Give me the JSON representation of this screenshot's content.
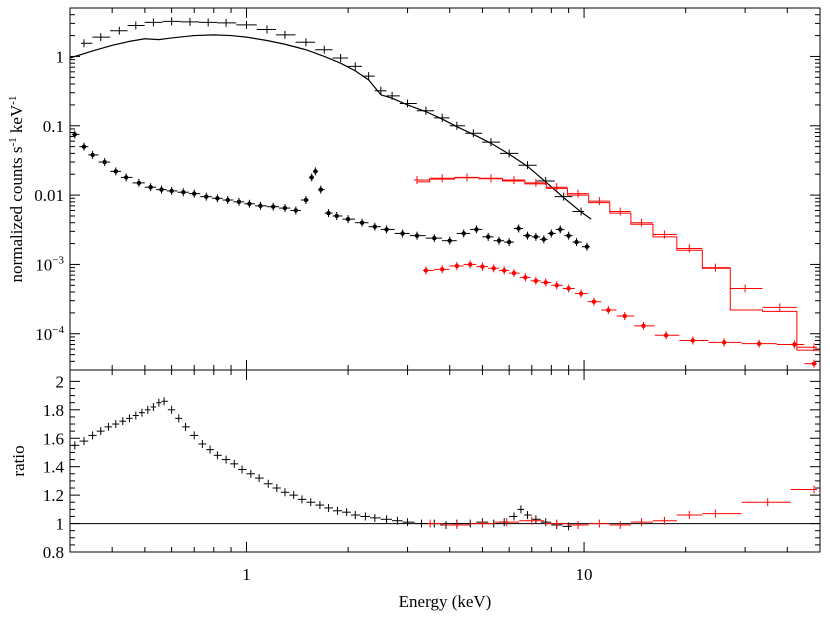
{
  "chart_data": [
    {
      "panel": "top",
      "type": "scatter",
      "xscale": "log",
      "yscale": "log",
      "xlim": [
        0.3,
        50
      ],
      "ylim": [
        3e-05,
        5
      ],
      "ylabel": {
        "base": "normalized counts s",
        "exp1": "-1",
        "mid": " keV",
        "exp2": "-1"
      },
      "x_ticks": [],
      "y_ticks": [
        {
          "v": 1,
          "label": "1"
        },
        {
          "v": 0.1,
          "label": "0.1"
        },
        {
          "v": 0.01,
          "label": "0.01"
        },
        {
          "v": 0.001,
          "label": "10",
          "exp": "−3"
        },
        {
          "v": 0.0001,
          "label": "10",
          "exp": "−4"
        }
      ],
      "series": [
        {
          "kind": "xmm-data",
          "color": "#000000",
          "marker": "cross",
          "x": [
            0.33,
            0.37,
            0.42,
            0.47,
            0.53,
            0.6,
            0.68,
            0.77,
            0.87,
            1.0,
            1.15,
            1.3,
            1.5,
            1.7,
            1.9,
            2.1,
            2.3,
            2.5,
            2.7,
            3.0,
            3.4,
            3.8,
            4.2,
            4.7,
            5.3,
            6.0,
            6.8,
            7.7,
            8.7,
            9.8
          ],
          "y": [
            1.55,
            1.9,
            2.35,
            2.8,
            3.1,
            3.2,
            3.15,
            3.1,
            3.05,
            2.85,
            2.45,
            2.05,
            1.6,
            1.25,
            0.95,
            0.72,
            0.52,
            0.32,
            0.27,
            0.21,
            0.165,
            0.13,
            0.1,
            0.078,
            0.058,
            0.04,
            0.027,
            0.016,
            0.0095,
            0.0058
          ]
        },
        {
          "kind": "xmm-model",
          "color": "#000000",
          "marker": "line",
          "x": [
            0.3,
            0.35,
            0.4,
            0.45,
            0.5,
            0.55,
            0.6,
            0.7,
            0.8,
            0.9,
            1.0,
            1.15,
            1.3,
            1.5,
            1.7,
            1.9,
            2.1,
            2.3,
            2.5,
            2.7,
            3.0,
            3.4,
            3.8,
            4.2,
            4.7,
            5.3,
            6.0,
            6.8,
            7.7,
            8.7,
            9.8,
            10.5
          ],
          "y": [
            0.95,
            1.2,
            1.45,
            1.65,
            1.8,
            1.75,
            1.85,
            2.0,
            2.05,
            2.0,
            1.9,
            1.7,
            1.5,
            1.25,
            1.0,
            0.8,
            0.62,
            0.46,
            0.28,
            0.25,
            0.2,
            0.16,
            0.125,
            0.097,
            0.075,
            0.056,
            0.039,
            0.026,
            0.0155,
            0.0092,
            0.0057,
            0.0045
          ]
        },
        {
          "kind": "xmm-background",
          "color": "#000000",
          "marker": "star",
          "x": [
            0.31,
            0.33,
            0.35,
            0.38,
            0.41,
            0.44,
            0.48,
            0.52,
            0.56,
            0.6,
            0.65,
            0.7,
            0.76,
            0.82,
            0.88,
            0.95,
            1.02,
            1.1,
            1.2,
            1.3,
            1.4,
            1.5,
            1.56,
            1.6,
            1.66,
            1.75,
            1.85,
            2.0,
            2.2,
            2.4,
            2.6,
            2.9,
            3.2,
            3.6,
            4.0,
            4.4,
            4.8,
            5.2,
            5.6,
            6.0,
            6.4,
            6.8,
            7.2,
            7.6,
            8.0,
            8.5,
            9.0,
            9.5,
            10.2
          ],
          "y": [
            0.075,
            0.05,
            0.038,
            0.03,
            0.022,
            0.018,
            0.015,
            0.013,
            0.012,
            0.0115,
            0.011,
            0.0105,
            0.0095,
            0.009,
            0.0085,
            0.008,
            0.0075,
            0.007,
            0.0068,
            0.0065,
            0.006,
            0.0085,
            0.018,
            0.022,
            0.012,
            0.0055,
            0.005,
            0.0045,
            0.004,
            0.0035,
            0.0032,
            0.0028,
            0.0026,
            0.0024,
            0.0022,
            0.0028,
            0.0032,
            0.0025,
            0.0022,
            0.0021,
            0.0033,
            0.0026,
            0.0025,
            0.0023,
            0.0028,
            0.0032,
            0.0026,
            0.0021,
            0.0018
          ]
        },
        {
          "kind": "nustar-data",
          "color": "#ff0000",
          "marker": "cross",
          "x": [
            3.2,
            3.8,
            4.5,
            5.3,
            6.2,
            7.2,
            8.3,
            9.6,
            11.1,
            12.8,
            14.8,
            17.3,
            20.5,
            24.5,
            30.0,
            38.0,
            48.0
          ],
          "y": [
            0.0165,
            0.0175,
            0.018,
            0.0175,
            0.0165,
            0.015,
            0.013,
            0.0105,
            0.0082,
            0.0058,
            0.004,
            0.0027,
            0.0017,
            0.0009,
            0.00045,
            0.00024,
            6.4e-05
          ]
        },
        {
          "kind": "nustar-model",
          "color": "#ff0000",
          "marker": "step",
          "x": [
            3.2,
            3.8,
            4.5,
            5.3,
            6.2,
            7.2,
            8.3,
            9.6,
            11.1,
            12.8,
            14.8,
            17.3,
            20.5,
            24.5,
            30.0,
            38.0,
            48.0
          ],
          "y": [
            0.0155,
            0.017,
            0.0178,
            0.0172,
            0.016,
            0.0145,
            0.0125,
            0.01,
            0.0078,
            0.0055,
            0.0038,
            0.0025,
            0.0016,
            0.00088,
            0.00022,
            0.00021,
            5.8e-05
          ]
        },
        {
          "kind": "nustar-background",
          "color": "#ff0000",
          "marker": "star",
          "x": [
            3.4,
            3.8,
            4.2,
            4.6,
            5.0,
            5.4,
            5.8,
            6.2,
            6.7,
            7.2,
            7.7,
            8.3,
            9.0,
            9.8,
            10.7,
            11.8,
            13.2,
            15.0,
            17.5,
            21.0,
            26.0,
            33.0,
            42.0,
            48.0
          ],
          "y": [
            0.00082,
            0.00085,
            0.00095,
            0.001,
            0.00093,
            0.00088,
            0.00082,
            0.00075,
            0.00065,
            0.00058,
            0.00055,
            0.0005,
            0.00045,
            0.00038,
            0.00029,
            0.00022,
            0.00018,
            0.00013,
            9.5e-05,
            8e-05,
            7.5e-05,
            7.2e-05,
            7e-05,
            3.7e-05
          ]
        }
      ]
    },
    {
      "panel": "bottom",
      "type": "scatter",
      "xscale": "log",
      "xlim": [
        0.3,
        50
      ],
      "ylim": [
        0.8,
        2.08
      ],
      "xlabel": "Energy (keV)",
      "ylabel": "ratio",
      "reference_line": 1,
      "x_ticks": [
        {
          "v": 1,
          "label": "1"
        },
        {
          "v": 10,
          "label": "10"
        }
      ],
      "y_ticks": [
        {
          "v": 2,
          "label": "2"
        },
        {
          "v": 1.8,
          "label": "1.8"
        },
        {
          "v": 1.6,
          "label": "1.6"
        },
        {
          "v": 1.4,
          "label": "1.4"
        },
        {
          "v": 1.2,
          "label": "1.2"
        },
        {
          "v": 1,
          "label": "1"
        },
        {
          "v": 0.8,
          "label": "0.8"
        }
      ],
      "series": [
        {
          "kind": "xmm-ratio",
          "color": "#000000",
          "marker": "cross",
          "x": [
            0.31,
            0.33,
            0.35,
            0.37,
            0.39,
            0.41,
            0.43,
            0.45,
            0.47,
            0.49,
            0.51,
            0.53,
            0.55,
            0.57,
            0.6,
            0.63,
            0.66,
            0.7,
            0.74,
            0.78,
            0.82,
            0.87,
            0.92,
            0.97,
            1.03,
            1.09,
            1.16,
            1.23,
            1.3,
            1.38,
            1.46,
            1.55,
            1.65,
            1.75,
            1.86,
            1.98,
            2.1,
            2.25,
            2.4,
            2.6,
            2.8,
            3.0,
            3.3,
            3.6,
            3.9,
            4.2,
            4.6,
            5.0,
            5.4,
            5.8,
            6.2,
            6.5,
            6.8,
            7.2,
            7.7,
            8.3,
            9.0
          ],
          "y": [
            1.55,
            1.58,
            1.62,
            1.65,
            1.68,
            1.7,
            1.72,
            1.74,
            1.76,
            1.78,
            1.8,
            1.82,
            1.85,
            1.86,
            1.8,
            1.74,
            1.68,
            1.62,
            1.56,
            1.52,
            1.48,
            1.45,
            1.42,
            1.38,
            1.35,
            1.32,
            1.28,
            1.25,
            1.22,
            1.2,
            1.17,
            1.15,
            1.13,
            1.11,
            1.09,
            1.08,
            1.06,
            1.05,
            1.04,
            1.03,
            1.02,
            1.01,
            1.0,
            1.0,
            0.99,
            1.0,
            1.0,
            1.01,
            1.0,
            1.01,
            1.05,
            1.1,
            1.06,
            1.03,
            1.01,
            0.99,
            0.98
          ]
        },
        {
          "kind": "nustar-ratio",
          "color": "#ff0000",
          "marker": "cross",
          "x": [
            3.5,
            4.2,
            5.0,
            5.9,
            7.0,
            8.3,
            9.6,
            11.1,
            12.8,
            14.8,
            17.3,
            20.5,
            24.5,
            35.0,
            48.0
          ],
          "y": [
            1.0,
            0.99,
            1.0,
            1.01,
            1.02,
            1.0,
            0.99,
            1.0,
            0.99,
            1.01,
            1.02,
            1.06,
            1.07,
            1.15,
            1.24
          ]
        }
      ]
    }
  ]
}
